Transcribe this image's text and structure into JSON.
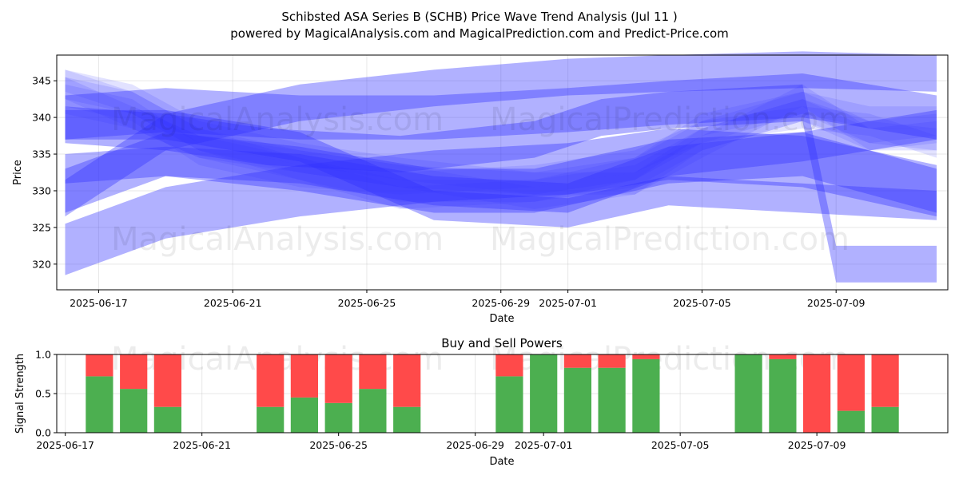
{
  "header": {
    "title": "Schibsted ASA Series B (SCHB) Price Wave Trend Analysis (Jul 11 )",
    "subtitle": "powered by MagicalAnalysis.com and MagicalPrediction.com and Predict-Price.com"
  },
  "watermarks": [
    "MagicalAnalysis.com",
    "MagicalPrediction.com"
  ],
  "colors": {
    "wave": "#3333ff",
    "buy": "#4caf50",
    "sell": "#ff4a4a"
  },
  "chart_data": [
    {
      "type": "area",
      "title": "",
      "xlabel": "Date",
      "ylabel": "Price",
      "x_ticks": [
        "2025-06-17",
        "2025-06-21",
        "2025-06-25",
        "2025-06-29",
        "2025-07-01",
        "2025-07-05",
        "2025-07-09"
      ],
      "y_ticks": [
        320,
        325,
        330,
        335,
        340,
        345
      ],
      "xlim": [
        "2025-06-15 18:00",
        "2025-07-12 08:00"
      ],
      "ylim": [
        316.5,
        348.5
      ],
      "grid": true,
      "series": [
        {
          "opacity": 0.38,
          "width": 6,
          "points": [
            [
              "2025-06-16",
              340
            ],
            [
              "2025-06-19",
              341
            ],
            [
              "2025-06-23",
              340
            ],
            [
              "2025-06-27",
              340
            ],
            [
              "2025-07-01",
              341
            ],
            [
              "2025-07-04",
              342
            ],
            [
              "2025-07-08",
              343
            ],
            [
              "2025-07-12",
              340
            ]
          ]
        },
        {
          "opacity": 0.38,
          "width": 5,
          "points": [
            [
              "2025-06-16",
              329
            ],
            [
              "2025-06-19",
              338
            ],
            [
              "2025-06-23",
              342
            ],
            [
              "2025-06-27",
              344
            ],
            [
              "2025-07-01",
              345.5
            ],
            [
              "2025-07-04",
              346
            ],
            [
              "2025-07-08",
              346.5
            ],
            [
              "2025-07-12",
              346
            ]
          ]
        },
        {
          "opacity": 0.38,
          "width": 7,
          "points": [
            [
              "2025-06-16",
              322
            ],
            [
              "2025-06-19",
              327
            ],
            [
              "2025-06-23",
              330
            ],
            [
              "2025-06-27",
              332
            ],
            [
              "2025-07-01",
              333
            ],
            [
              "2025-07-04",
              335
            ],
            [
              "2025-07-08",
              334
            ],
            [
              "2025-07-12",
              330
            ]
          ]
        },
        {
          "opacity": 0.38,
          "width": 5,
          "points": [
            [
              "2025-06-16",
              339
            ],
            [
              "2025-06-19",
              338
            ],
            [
              "2025-06-22",
              336
            ],
            [
              "2025-06-26",
              335
            ],
            [
              "2025-06-30",
              337
            ],
            [
              "2025-07-02",
              340
            ],
            [
              "2025-07-04",
              341
            ],
            [
              "2025-07-08",
              342
            ],
            [
              "2025-07-09",
              320
            ],
            [
              "2025-07-12",
              320
            ]
          ]
        },
        {
          "opacity": 0.38,
          "width": 6,
          "points": [
            [
              "2025-06-16",
              330
            ],
            [
              "2025-06-19",
              335
            ],
            [
              "2025-06-23",
              333
            ],
            [
              "2025-06-27",
              330
            ],
            [
              "2025-06-30",
              330
            ],
            [
              "2025-07-04",
              334
            ],
            [
              "2025-07-08",
              335
            ],
            [
              "2025-07-12",
              330
            ]
          ]
        },
        {
          "opacity": 0.38,
          "width": 4,
          "points": [
            [
              "2025-06-16",
              333
            ],
            [
              "2025-06-19",
              334
            ],
            [
              "2025-06-23",
              333
            ],
            [
              "2025-06-27",
              330
            ],
            [
              "2025-07-01",
              329
            ],
            [
              "2025-07-04",
              334
            ],
            [
              "2025-07-08",
              336
            ],
            [
              "2025-07-12",
              339
            ]
          ]
        },
        {
          "opacity": 0.38,
          "width": 4,
          "points": [
            [
              "2025-06-16",
              339
            ],
            [
              "2025-06-19",
              339
            ],
            [
              "2025-06-23",
              336
            ],
            [
              "2025-06-27",
              328
            ],
            [
              "2025-07-01",
              327
            ],
            [
              "2025-07-04",
              330
            ],
            [
              "2025-07-08",
              329
            ],
            [
              "2025-07-12",
              328
            ]
          ]
        },
        {
          "opacity": 0.14,
          "width": 3,
          "points": [
            [
              "2025-06-16",
              345
            ],
            [
              "2025-06-18",
              342
            ],
            [
              "2025-06-20",
              337
            ],
            [
              "2025-06-23",
              334
            ],
            [
              "2025-06-26",
              332
            ],
            [
              "2025-06-30",
              331
            ],
            [
              "2025-07-03",
              333
            ],
            [
              "2025-07-05",
              338
            ],
            [
              "2025-07-08",
              342
            ],
            [
              "2025-07-10",
              338
            ],
            [
              "2025-07-12",
              337
            ]
          ]
        },
        {
          "opacity": 0.14,
          "width": 3,
          "points": [
            [
              "2025-06-16",
              344
            ],
            [
              "2025-06-18",
              340
            ],
            [
              "2025-06-20",
              336
            ],
            [
              "2025-06-23",
              333
            ],
            [
              "2025-06-26",
              330
            ],
            [
              "2025-06-30",
              330
            ],
            [
              "2025-07-03",
              332
            ],
            [
              "2025-07-05",
              337
            ],
            [
              "2025-07-08",
              341
            ],
            [
              "2025-07-10",
              338
            ],
            [
              "2025-07-12",
              339
            ]
          ]
        },
        {
          "opacity": 0.14,
          "width": 3,
          "points": [
            [
              "2025-06-16",
              345
            ],
            [
              "2025-06-18",
              343
            ],
            [
              "2025-06-20",
              338
            ],
            [
              "2025-06-23",
              335
            ],
            [
              "2025-06-26",
              333
            ],
            [
              "2025-06-30",
              331
            ],
            [
              "2025-07-03",
              331
            ],
            [
              "2025-07-05",
              336
            ],
            [
              "2025-07-08",
              343
            ],
            [
              "2025-07-10",
              337
            ],
            [
              "2025-07-12",
              338
            ]
          ]
        },
        {
          "opacity": 0.14,
          "width": 3,
          "points": [
            [
              "2025-06-16",
              343
            ],
            [
              "2025-06-18",
              341
            ],
            [
              "2025-06-20",
              335
            ],
            [
              "2025-06-23",
              332
            ],
            [
              "2025-06-26",
              331
            ],
            [
              "2025-06-30",
              332
            ],
            [
              "2025-07-03",
              334
            ],
            [
              "2025-07-05",
              338
            ],
            [
              "2025-07-08",
              340
            ],
            [
              "2025-07-10",
              339
            ],
            [
              "2025-07-12",
              336
            ]
          ]
        },
        {
          "opacity": 0.14,
          "width": 3,
          "points": [
            [
              "2025-06-16",
              344
            ],
            [
              "2025-06-18",
              342
            ],
            [
              "2025-06-20",
              337
            ],
            [
              "2025-06-23",
              333
            ],
            [
              "2025-06-26",
              329
            ],
            [
              "2025-06-30",
              330
            ],
            [
              "2025-07-03",
              333
            ],
            [
              "2025-07-05",
              339
            ],
            [
              "2025-07-08",
              342
            ],
            [
              "2025-07-10",
              340
            ],
            [
              "2025-07-12",
              340
            ]
          ]
        },
        {
          "opacity": 0.14,
          "width": 3,
          "points": [
            [
              "2025-06-16",
              342
            ],
            [
              "2025-06-18",
              340
            ],
            [
              "2025-06-20",
              336
            ],
            [
              "2025-06-23",
              334
            ],
            [
              "2025-06-26",
              332
            ],
            [
              "2025-06-30",
              329
            ],
            [
              "2025-07-03",
              331
            ],
            [
              "2025-07-05",
              337
            ],
            [
              "2025-07-08",
              341
            ],
            [
              "2025-07-10",
              337
            ],
            [
              "2025-07-12",
              337
            ]
          ]
        }
      ]
    },
    {
      "type": "bar",
      "title": "Buy and Sell Powers",
      "xlabel": "Date",
      "ylabel": "Signal Strength",
      "x_ticks": [
        "2025-06-17",
        "2025-06-21",
        "2025-06-25",
        "2025-06-29",
        "2025-07-01",
        "2025-07-05",
        "2025-07-09"
      ],
      "y_ticks": [
        "0.0",
        "0.5",
        "1.0"
      ],
      "xlim": [
        "2025-06-16 18:00",
        "2025-07-12 20:00"
      ],
      "ylim": [
        0,
        1
      ],
      "dates": [
        "2025-06-18",
        "2025-06-19",
        "2025-06-20",
        "2025-06-23",
        "2025-06-24",
        "2025-06-25",
        "2025-06-26",
        "2025-06-27",
        "2025-06-30",
        "2025-07-01",
        "2025-07-02",
        "2025-07-03",
        "2025-07-04",
        "2025-07-07",
        "2025-07-08",
        "2025-07-09",
        "2025-07-10",
        "2025-07-11"
      ],
      "buy": [
        0.72,
        0.56,
        0.33,
        0.33,
        0.45,
        0.38,
        0.56,
        0.33,
        0.72,
        1.0,
        0.83,
        0.83,
        0.94,
        1.0,
        0.94,
        0.0,
        0.28,
        0.33
      ],
      "sell": [
        0.28,
        0.44,
        0.67,
        0.67,
        0.55,
        0.62,
        0.44,
        0.67,
        0.28,
        0.0,
        0.17,
        0.17,
        0.06,
        0.0,
        0.06,
        1.0,
        0.72,
        0.67
      ]
    }
  ]
}
